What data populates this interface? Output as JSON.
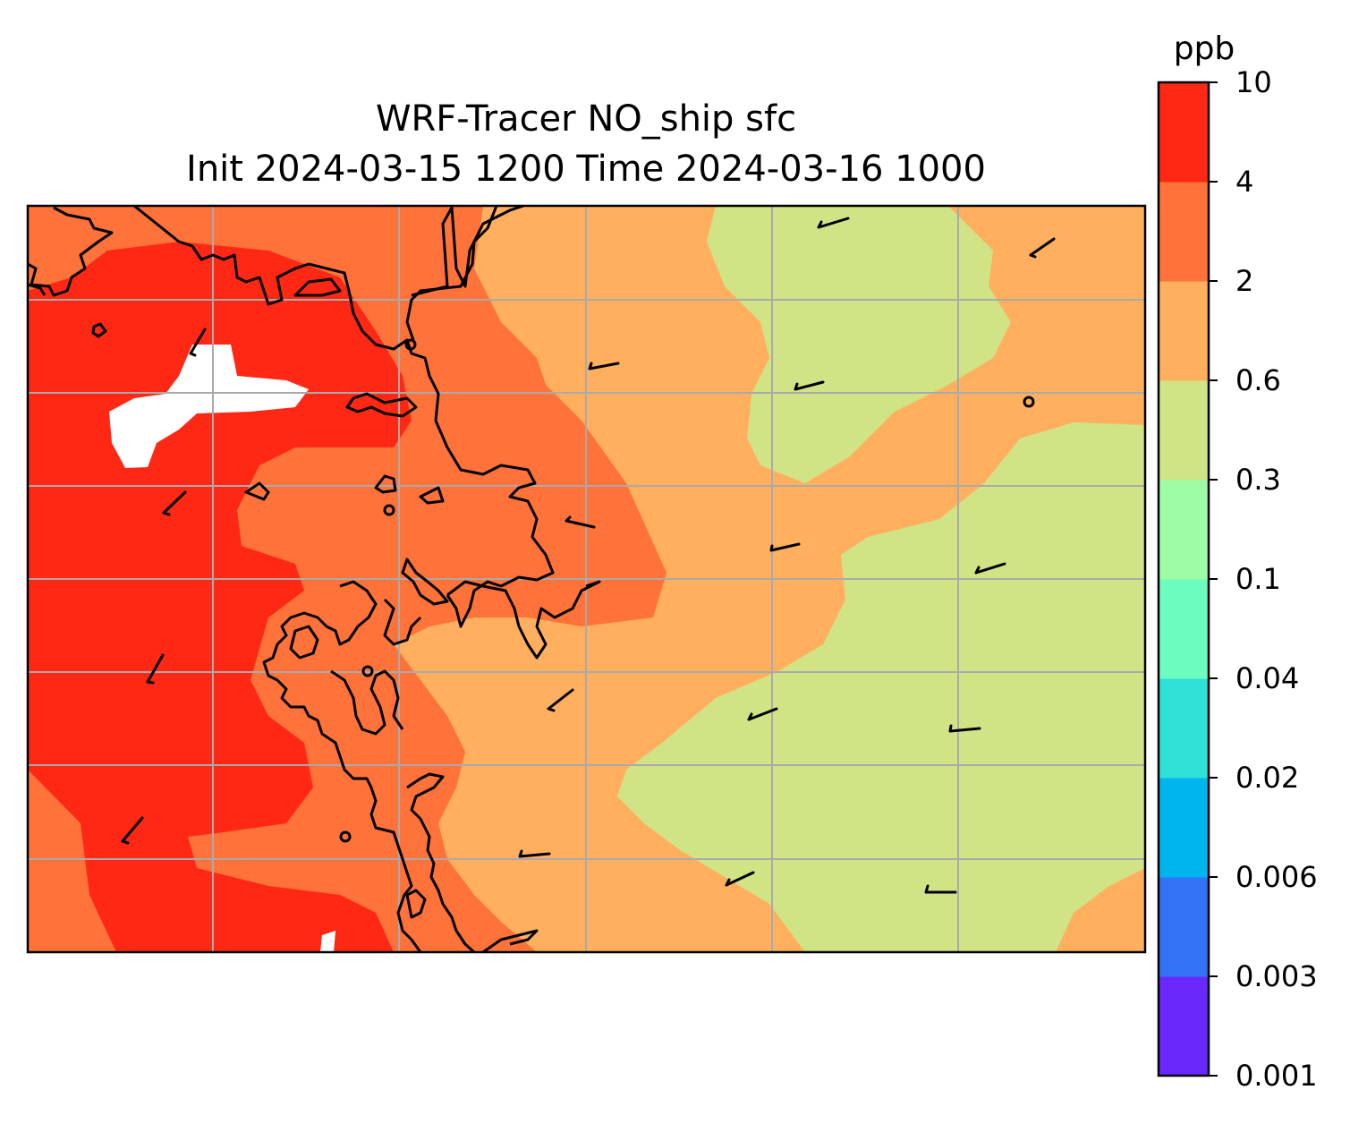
{
  "title": {
    "line1": "WRF-Tracer NO_ship sfc",
    "line2": "Init 2024-03-15 1200 Time 2024-03-16 1000"
  },
  "colorbar": {
    "unit": "ppb",
    "levels": [
      "0.001",
      "0.003",
      "0.006",
      "0.02",
      "0.04",
      "0.1",
      "0.3",
      "0.6",
      "2",
      "4",
      "10"
    ],
    "colors": [
      "#6a28fb",
      "#3373f6",
      "#00b4ee",
      "#2ee0d6",
      "#6cfcbf",
      "#9efca4",
      "#d0e385",
      "#ffaf5e",
      "#ff7239",
      "#ff2814"
    ]
  },
  "map": {
    "field": "NO_ship tracer concentration at surface",
    "gridlines": true,
    "coastlines": true,
    "wind_barbs": true
  }
}
